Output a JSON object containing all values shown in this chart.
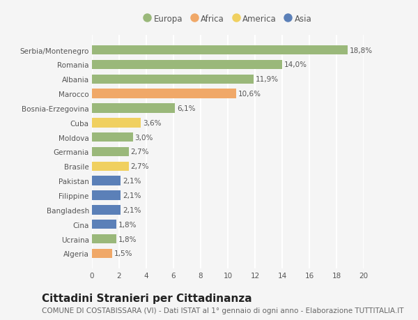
{
  "categories": [
    "Algeria",
    "Ucraina",
    "Cina",
    "Bangladesh",
    "Filippine",
    "Pakistan",
    "Brasile",
    "Germania",
    "Moldova",
    "Cuba",
    "Bosnia-Erzegovina",
    "Marocco",
    "Albania",
    "Romania",
    "Serbia/Montenegro"
  ],
  "values": [
    1.5,
    1.8,
    1.8,
    2.1,
    2.1,
    2.1,
    2.7,
    2.7,
    3.0,
    3.6,
    6.1,
    10.6,
    11.9,
    14.0,
    18.8
  ],
  "labels": [
    "1,5%",
    "1,8%",
    "1,8%",
    "2,1%",
    "2,1%",
    "2,1%",
    "2,7%",
    "2,7%",
    "3,0%",
    "3,6%",
    "6,1%",
    "10,6%",
    "11,9%",
    "14,0%",
    "18,8%"
  ],
  "colors": [
    "#f0a868",
    "#9ab87a",
    "#5b80b8",
    "#5b80b8",
    "#5b80b8",
    "#5b80b8",
    "#f0d060",
    "#9ab87a",
    "#9ab87a",
    "#f0d060",
    "#9ab87a",
    "#f0a868",
    "#9ab87a",
    "#9ab87a",
    "#9ab87a"
  ],
  "continent_colors": {
    "Europa": "#9ab87a",
    "Africa": "#f0a868",
    "America": "#f0d060",
    "Asia": "#5b80b8"
  },
  "legend_labels": [
    "Europa",
    "Africa",
    "America",
    "Asia"
  ],
  "xlim": [
    0,
    20
  ],
  "xticks": [
    0,
    2,
    4,
    6,
    8,
    10,
    12,
    14,
    16,
    18,
    20
  ],
  "title": "Cittadini Stranieri per Cittadinanza",
  "subtitle": "COMUNE DI COSTABISSARA (VI) - Dati ISTAT al 1° gennaio di ogni anno - Elaborazione TUTTITALIA.IT",
  "background_color": "#f5f5f5",
  "grid_color": "#ffffff",
  "bar_alpha": 1.0,
  "title_fontsize": 11,
  "subtitle_fontsize": 7.5,
  "label_fontsize": 7.5,
  "tick_fontsize": 7.5,
  "legend_fontsize": 8.5
}
